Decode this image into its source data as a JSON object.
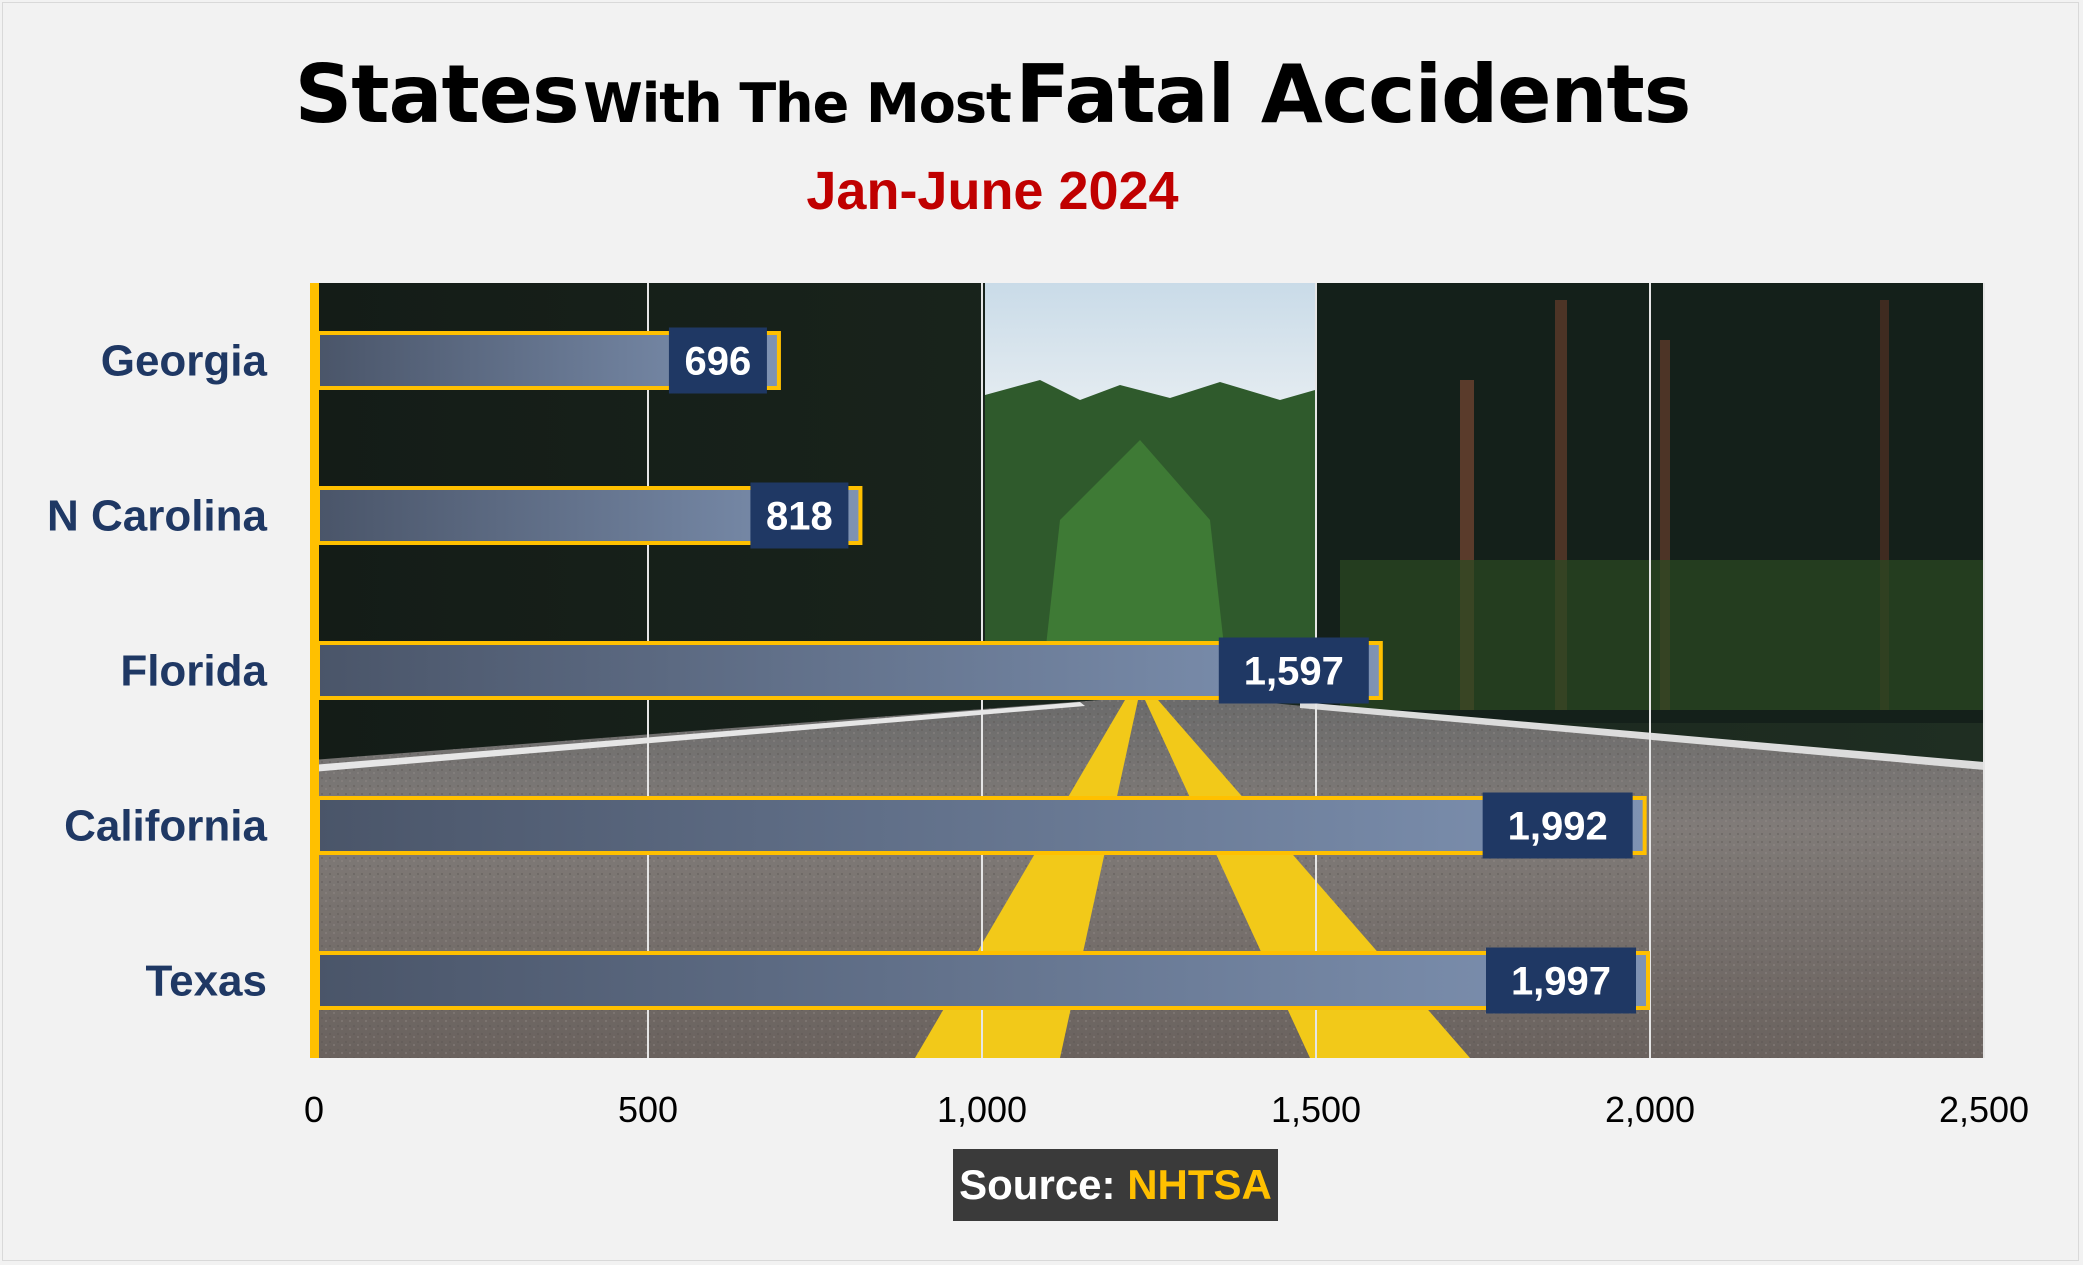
{
  "title": {
    "part1": "States",
    "part2": "With The Most",
    "part3": "Fatal Accidents"
  },
  "subtitle": "Jan-June 2024",
  "source": {
    "label": "Source:",
    "name": "NHTSA"
  },
  "colors": {
    "bar_dark": "#4a5569",
    "bar_light": "#7f93b3",
    "bar_outline": "#ffc000",
    "label_box": "#1f3864",
    "category_text": "#1f3864",
    "subtitle": "#c00000",
    "axis_line": "#ffc000",
    "source_bg": "#3a3a3a"
  },
  "chart_data": {
    "type": "bar",
    "orientation": "horizontal",
    "categories": [
      "Georgia",
      "N Carolina",
      "Florida",
      "California",
      "Texas"
    ],
    "values": [
      696,
      818,
      1597,
      1992,
      1997
    ],
    "value_labels": [
      "696",
      "818",
      "1,597",
      "1,992",
      "1,997"
    ],
    "xlim": [
      0,
      2500
    ],
    "xticks": [
      0,
      500,
      1000,
      1500,
      2000,
      2500
    ],
    "xtick_labels": [
      "0",
      "500",
      "1,000",
      "1,500",
      "2,000",
      "2,500"
    ],
    "grid": true,
    "background": "road-through-forest photo"
  }
}
